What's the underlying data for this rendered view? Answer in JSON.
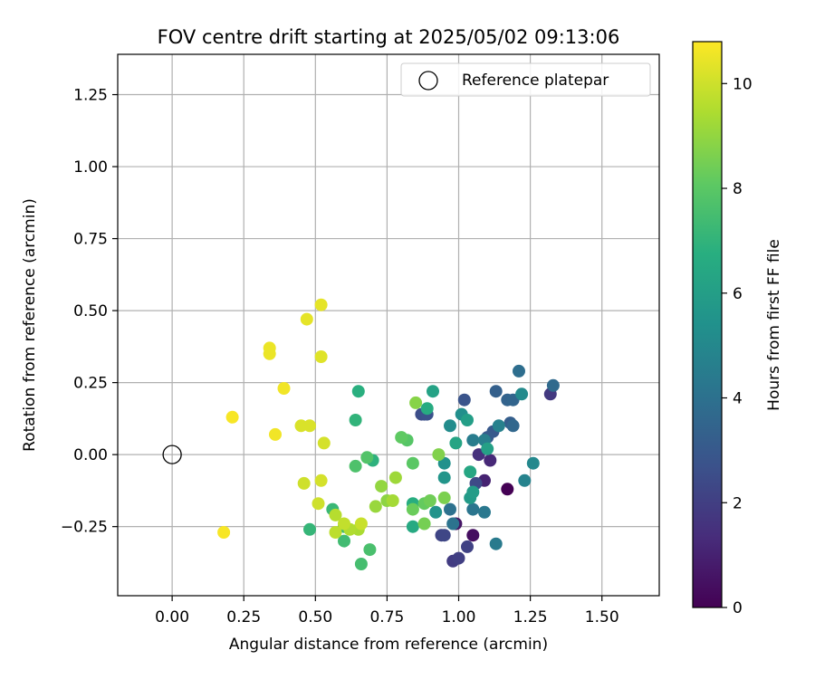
{
  "chart_data": {
    "type": "scatter",
    "title": "FOV centre drift starting at 2025/05/02 09:13:06",
    "xlabel": "Angular distance from reference (arcmin)",
    "ylabel": "Rotation from reference (arcmin)",
    "xlim": [
      -0.19,
      1.7
    ],
    "ylim": [
      -0.49,
      1.39
    ],
    "xticks": [
      0.0,
      0.25,
      0.5,
      0.75,
      1.0,
      1.25,
      1.5
    ],
    "xtick_labels": [
      "0.00",
      "0.25",
      "0.50",
      "0.75",
      "1.00",
      "1.25",
      "1.50"
    ],
    "yticks": [
      -0.25,
      0.0,
      0.25,
      0.5,
      0.75,
      1.0,
      1.25
    ],
    "ytick_labels": [
      "−0.25",
      "0.00",
      "0.25",
      "0.50",
      "0.75",
      "1.00",
      "1.25"
    ],
    "grid": true,
    "legend": {
      "position": "top-right",
      "entries": [
        "Reference platepar"
      ]
    },
    "reference_point": {
      "x": 0.0,
      "y": 0.0
    },
    "colorbar": {
      "label": "Hours from first FF file",
      "range": [
        0,
        10.8
      ],
      "ticks": [
        0,
        2,
        4,
        6,
        8,
        10
      ],
      "colormap": "viridis"
    },
    "points": [
      [
        1.17,
        -0.12,
        0.0
      ],
      [
        1.05,
        -0.28,
        0.4
      ],
      [
        0.99,
        -0.24,
        0.6
      ],
      [
        1.09,
        -0.09,
        1.0
      ],
      [
        1.11,
        -0.02,
        1.2
      ],
      [
        1.07,
        0.0,
        1.5
      ],
      [
        1.32,
        0.21,
        1.8
      ],
      [
        0.98,
        -0.37,
        1.9
      ],
      [
        1.0,
        -0.36,
        2.0
      ],
      [
        1.03,
        -0.32,
        2.1
      ],
      [
        0.94,
        -0.28,
        2.2
      ],
      [
        0.95,
        -0.28,
        2.3
      ],
      [
        1.06,
        -0.1,
        2.4
      ],
      [
        0.87,
        0.14,
        2.5
      ],
      [
        0.88,
        0.14,
        2.6
      ],
      [
        0.89,
        0.14,
        2.7
      ],
      [
        1.02,
        0.19,
        2.8
      ],
      [
        1.12,
        0.08,
        3.0
      ],
      [
        1.1,
        0.06,
        3.1
      ],
      [
        1.18,
        0.11,
        3.2
      ],
      [
        1.13,
        0.22,
        3.3
      ],
      [
        1.17,
        0.19,
        3.4
      ],
      [
        1.19,
        0.19,
        3.5
      ],
      [
        1.19,
        0.1,
        3.6
      ],
      [
        1.33,
        0.24,
        3.7
      ],
      [
        1.21,
        0.29,
        3.9
      ],
      [
        0.97,
        -0.19,
        4.0
      ],
      [
        0.98,
        -0.24,
        4.1
      ],
      [
        1.05,
        -0.19,
        4.2
      ],
      [
        1.09,
        -0.2,
        4.3
      ],
      [
        1.13,
        -0.31,
        4.4
      ],
      [
        1.05,
        0.05,
        4.5
      ],
      [
        1.09,
        0.05,
        4.6
      ],
      [
        1.14,
        0.1,
        4.7
      ],
      [
        1.23,
        -0.09,
        4.8
      ],
      [
        1.26,
        -0.03,
        5.0
      ],
      [
        1.22,
        0.21,
        5.1
      ],
      [
        0.97,
        0.1,
        5.2
      ],
      [
        1.01,
        0.14,
        5.3
      ],
      [
        0.95,
        -0.03,
        5.4
      ],
      [
        0.92,
        -0.2,
        5.5
      ],
      [
        0.95,
        -0.08,
        5.6
      ],
      [
        1.04,
        -0.15,
        5.8
      ],
      [
        1.05,
        -0.13,
        5.9
      ],
      [
        1.03,
        0.12,
        6.0
      ],
      [
        1.1,
        0.02,
        6.1
      ],
      [
        0.91,
        0.22,
        6.2
      ],
      [
        0.99,
        0.04,
        6.3
      ],
      [
        1.04,
        -0.06,
        6.4
      ],
      [
        0.84,
        -0.25,
        6.5
      ],
      [
        0.89,
        0.16,
        6.6
      ],
      [
        0.84,
        -0.17,
        6.7
      ],
      [
        0.65,
        0.22,
        6.8
      ],
      [
        0.7,
        -0.02,
        6.9
      ],
      [
        0.64,
        0.12,
        7.0
      ],
      [
        0.48,
        -0.26,
        7.1
      ],
      [
        0.56,
        -0.19,
        7.2
      ],
      [
        0.6,
        -0.25,
        7.3
      ],
      [
        0.6,
        -0.3,
        7.4
      ],
      [
        0.66,
        -0.38,
        7.5
      ],
      [
        0.69,
        -0.33,
        7.6
      ],
      [
        0.64,
        -0.04,
        7.7
      ],
      [
        0.68,
        -0.01,
        7.8
      ],
      [
        0.82,
        0.05,
        7.9
      ],
      [
        0.84,
        -0.03,
        8.0
      ],
      [
        0.8,
        0.06,
        8.1
      ],
      [
        0.88,
        -0.17,
        8.2
      ],
      [
        0.84,
        -0.19,
        8.3
      ],
      [
        0.9,
        -0.16,
        8.4
      ],
      [
        0.88,
        -0.24,
        8.5
      ],
      [
        0.95,
        -0.15,
        8.6
      ],
      [
        0.93,
        0.0,
        8.7
      ],
      [
        0.85,
        0.18,
        8.8
      ],
      [
        0.75,
        -0.16,
        8.9
      ],
      [
        0.73,
        -0.11,
        9.0
      ],
      [
        0.71,
        -0.18,
        9.1
      ],
      [
        0.78,
        -0.08,
        9.2
      ],
      [
        0.77,
        -0.16,
        9.3
      ],
      [
        0.65,
        -0.26,
        9.4
      ],
      [
        0.62,
        -0.26,
        9.5
      ],
      [
        0.57,
        -0.21,
        9.6
      ],
      [
        0.57,
        -0.27,
        9.7
      ],
      [
        0.6,
        -0.24,
        9.8
      ],
      [
        0.66,
        -0.24,
        9.9
      ],
      [
        0.51,
        -0.17,
        10.0
      ],
      [
        0.46,
        -0.1,
        10.0
      ],
      [
        0.52,
        -0.09,
        10.1
      ],
      [
        0.53,
        0.04,
        10.1
      ],
      [
        0.48,
        0.1,
        10.2
      ],
      [
        0.45,
        0.1,
        10.2
      ],
      [
        0.52,
        0.34,
        10.3
      ],
      [
        0.52,
        0.52,
        10.4
      ],
      [
        0.47,
        0.47,
        10.4
      ],
      [
        0.34,
        0.37,
        10.5
      ],
      [
        0.34,
        0.35,
        10.5
      ],
      [
        0.39,
        0.23,
        10.6
      ],
      [
        0.36,
        0.07,
        10.6
      ],
      [
        0.21,
        0.13,
        10.7
      ],
      [
        0.18,
        -0.27,
        10.7
      ]
    ]
  }
}
